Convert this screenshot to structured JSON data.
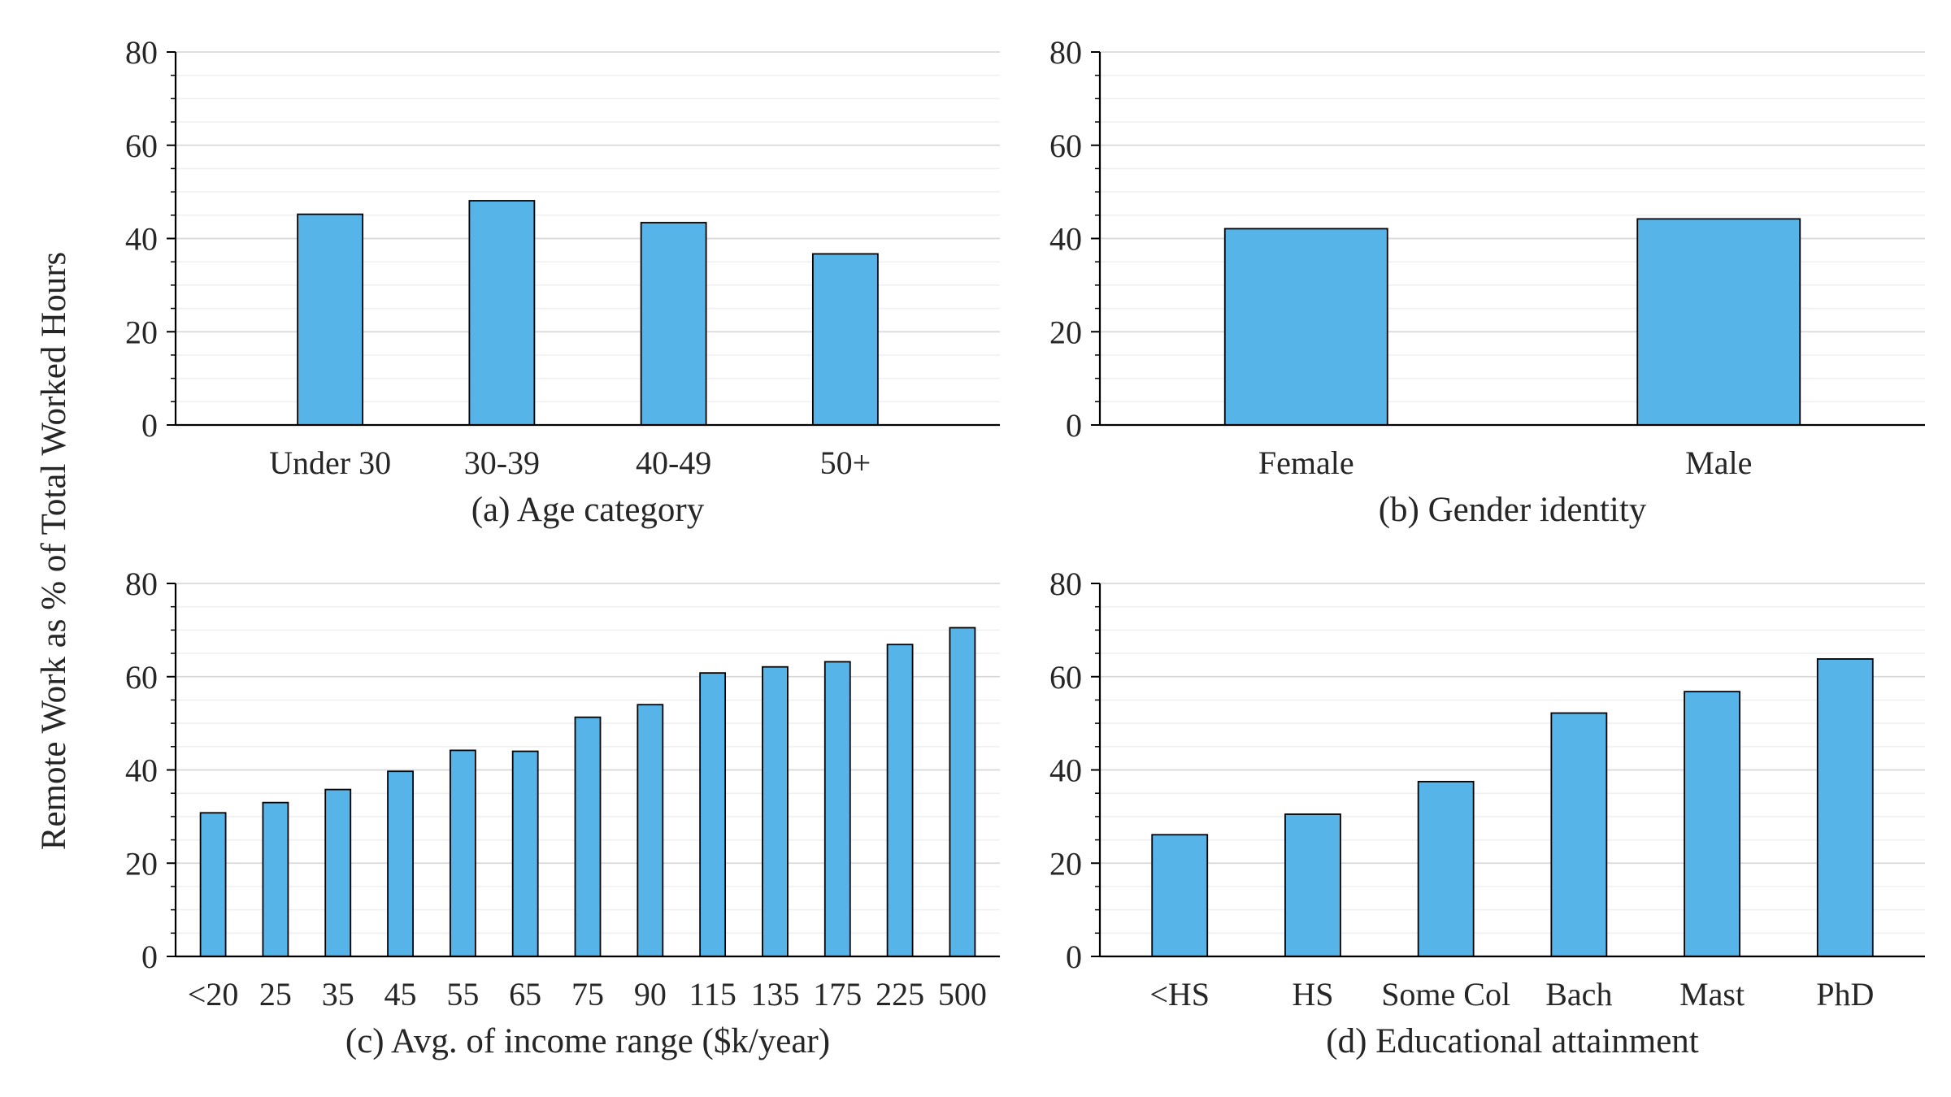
{
  "figure": {
    "ylabel": "Remote Work as % of Total Worked Hours",
    "bar_color": "#56b4e9",
    "edge_color": "#000000",
    "grid_major_color": "#d9d9d9",
    "grid_minor_color": "#efefef"
  },
  "chart_data": [
    {
      "type": "bar",
      "title": "(a) Age category",
      "categories": [
        "Under 30",
        "30-39",
        "40-49",
        "50+"
      ],
      "values": [
        45.2,
        48.1,
        43.4,
        36.7
      ],
      "ylabel": "Remote Work as % of Total Worked Hours",
      "ylim": [
        0,
        80
      ],
      "yticks": [
        0,
        20,
        40,
        60,
        80
      ],
      "grid": true
    },
    {
      "type": "bar",
      "title": "(b) Gender identity",
      "categories": [
        "Female",
        "Male"
      ],
      "values": [
        42.1,
        44.2
      ],
      "ylabel": "",
      "ylim": [
        0,
        80
      ],
      "yticks": [
        0,
        20,
        40,
        60,
        80
      ],
      "grid": true
    },
    {
      "type": "bar",
      "title": "(c) Avg. of income range ($k/year)",
      "categories": [
        "<20",
        "25",
        "35",
        "45",
        "55",
        "65",
        "75",
        "90",
        "115",
        "135",
        "175",
        "225",
        "500"
      ],
      "values": [
        30.8,
        33.0,
        35.8,
        39.7,
        44.2,
        44.0,
        51.3,
        54.0,
        60.8,
        62.1,
        63.2,
        66.9,
        70.5
      ],
      "ylabel": "Remote Work as % of Total Worked Hours",
      "ylim": [
        0,
        80
      ],
      "yticks": [
        0,
        20,
        40,
        60,
        80
      ],
      "grid": true
    },
    {
      "type": "bar",
      "title": "(d) Educational attainment",
      "categories": [
        "<HS",
        "HS",
        "Some Col",
        "Bach",
        "Mast",
        "PhD"
      ],
      "values": [
        26.1,
        30.5,
        37.5,
        52.2,
        56.8,
        63.8
      ],
      "ylabel": "",
      "ylim": [
        0,
        80
      ],
      "yticks": [
        0,
        20,
        40,
        60,
        80
      ],
      "grid": true
    }
  ]
}
